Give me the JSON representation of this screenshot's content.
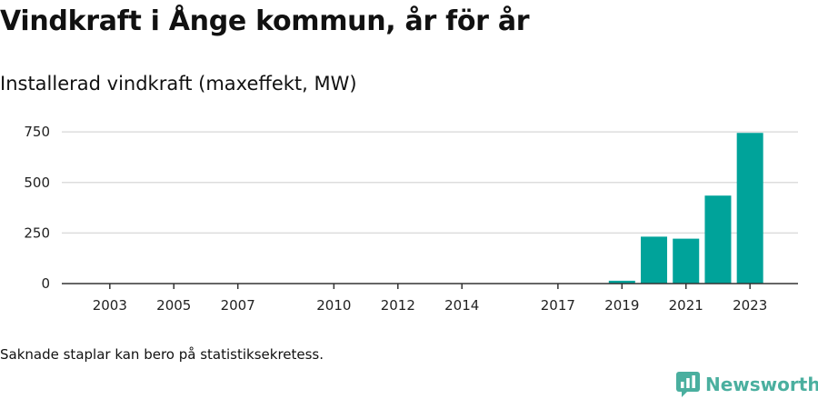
{
  "title": "Vindkraft i Ånge kommun, år för år",
  "subtitle": "Installerad vindkraft (maxeffekt, MW)",
  "footnote": "Saknade staplar kan bero på statistiksekretess.",
  "brand": {
    "name": "Newsworthy",
    "color": "#4aaf9f",
    "icon": "bar-chart-logo-icon"
  },
  "colors": {
    "bar": "#00a39a",
    "grid": "#dddddd",
    "axis": "#333333"
  },
  "chart_data": {
    "type": "bar",
    "title": "Vindkraft i Ånge kommun, år för år",
    "subtitle": "Installerad vindkraft (maxeffekt, MW)",
    "xlabel": "",
    "ylabel": "Installerad vindkraft (maxeffekt, MW)",
    "grid": true,
    "ylim": [
      0,
      800
    ],
    "yticks": [
      0,
      250,
      500,
      750
    ],
    "xticks": [
      2003,
      2005,
      2007,
      2010,
      2012,
      2014,
      2017,
      2019,
      2021,
      2023
    ],
    "xlim": [
      2001.5,
      2024.5
    ],
    "bars": [
      {
        "year": 2019,
        "value": 14
      },
      {
        "year": 2020,
        "value": 232
      },
      {
        "year": 2021,
        "value": 222
      },
      {
        "year": 2022,
        "value": 435
      },
      {
        "year": 2023,
        "value": 745
      }
    ]
  }
}
